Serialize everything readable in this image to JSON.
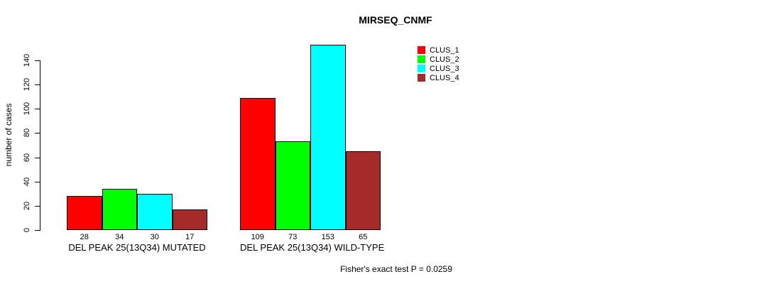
{
  "footer_note": "Fisher's exact test P = 0.0259",
  "chart_data": {
    "type": "bar",
    "title": "MIRSEQ_CNMF",
    "xlabel": "",
    "ylabel": "number of cases",
    "ylim": [
      0,
      155
    ],
    "yticks": [
      0,
      20,
      40,
      60,
      80,
      100,
      120,
      140
    ],
    "grid": false,
    "legend_position": "top-right",
    "categories": [
      "DEL PEAK 25(13Q34) MUTATED",
      "DEL PEAK 25(13Q34) WILD-TYPE"
    ],
    "series": [
      {
        "name": "CLUS_1",
        "color": "#ff0000",
        "values": [
          28,
          109
        ]
      },
      {
        "name": "CLUS_2",
        "color": "#00ff00",
        "values": [
          34,
          73
        ]
      },
      {
        "name": "CLUS_3",
        "color": "#00ffff",
        "values": [
          30,
          153
        ]
      },
      {
        "name": "CLUS_4",
        "color": "#a52a2a",
        "values": [
          17,
          65
        ]
      }
    ],
    "bar_value_labels": [
      [
        28,
        34,
        30,
        17
      ],
      [
        109,
        73,
        153,
        65
      ]
    ]
  }
}
